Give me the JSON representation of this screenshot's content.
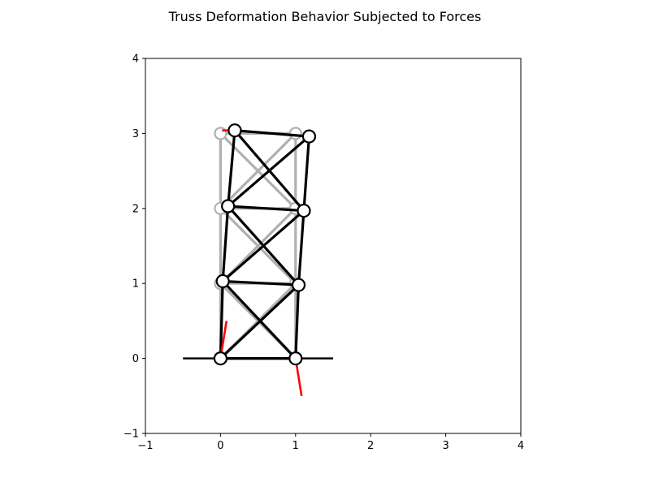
{
  "chart_data": {
    "type": "line",
    "title": "Truss Deformation Behavior Subjected to Forces",
    "xlabel": "",
    "ylabel": "",
    "xlim": [
      -1,
      4
    ],
    "ylim": [
      -1,
      4
    ],
    "xticks": [
      "−1",
      "0",
      "1",
      "2",
      "3",
      "4"
    ],
    "yticks": [
      "−1",
      "0",
      "1",
      "2",
      "3",
      "4"
    ],
    "grid": false,
    "aspect": "equal",
    "ground_line": {
      "x": [
        -0.5,
        1.5
      ],
      "y": 0,
      "color": "#000000"
    },
    "original_truss": {
      "color": "#b0b0b0",
      "nodes": [
        [
          0,
          0
        ],
        [
          1,
          0
        ],
        [
          0,
          1
        ],
        [
          1,
          1
        ],
        [
          0,
          2
        ],
        [
          1,
          2
        ],
        [
          0,
          3
        ],
        [
          1,
          3
        ]
      ],
      "members": [
        [
          0,
          1
        ],
        [
          0,
          2
        ],
        [
          1,
          3
        ],
        [
          2,
          3
        ],
        [
          0,
          3
        ],
        [
          1,
          2
        ],
        [
          2,
          4
        ],
        [
          3,
          5
        ],
        [
          4,
          5
        ],
        [
          2,
          5
        ],
        [
          3,
          4
        ],
        [
          4,
          6
        ],
        [
          5,
          7
        ],
        [
          6,
          7
        ],
        [
          4,
          7
        ],
        [
          5,
          6
        ]
      ]
    },
    "deformed_truss": {
      "color": "#000000",
      "nodes": [
        [
          0.0,
          0.0
        ],
        [
          1.0,
          0.0
        ],
        [
          0.03,
          1.03
        ],
        [
          1.04,
          0.98
        ],
        [
          0.1,
          2.03
        ],
        [
          1.11,
          1.97
        ],
        [
          0.19,
          3.04
        ],
        [
          1.18,
          2.96
        ]
      ],
      "members": [
        [
          0,
          1
        ],
        [
          0,
          2
        ],
        [
          1,
          3
        ],
        [
          2,
          3
        ],
        [
          0,
          3
        ],
        [
          1,
          2
        ],
        [
          2,
          4
        ],
        [
          3,
          5
        ],
        [
          4,
          5
        ],
        [
          2,
          5
        ],
        [
          3,
          4
        ],
        [
          4,
          6
        ],
        [
          5,
          7
        ],
        [
          6,
          7
        ],
        [
          4,
          7
        ],
        [
          5,
          6
        ]
      ]
    },
    "forces": {
      "color": "#ff0000",
      "arrows": [
        {
          "from": [
            0.0,
            0.0
          ],
          "to": [
            0.08,
            0.5
          ]
        },
        {
          "from": [
            1.0,
            0.0
          ],
          "to": [
            1.08,
            -0.5
          ]
        },
        {
          "from": [
            0.19,
            3.04
          ],
          "to": [
            0.02,
            3.04
          ]
        }
      ]
    }
  }
}
